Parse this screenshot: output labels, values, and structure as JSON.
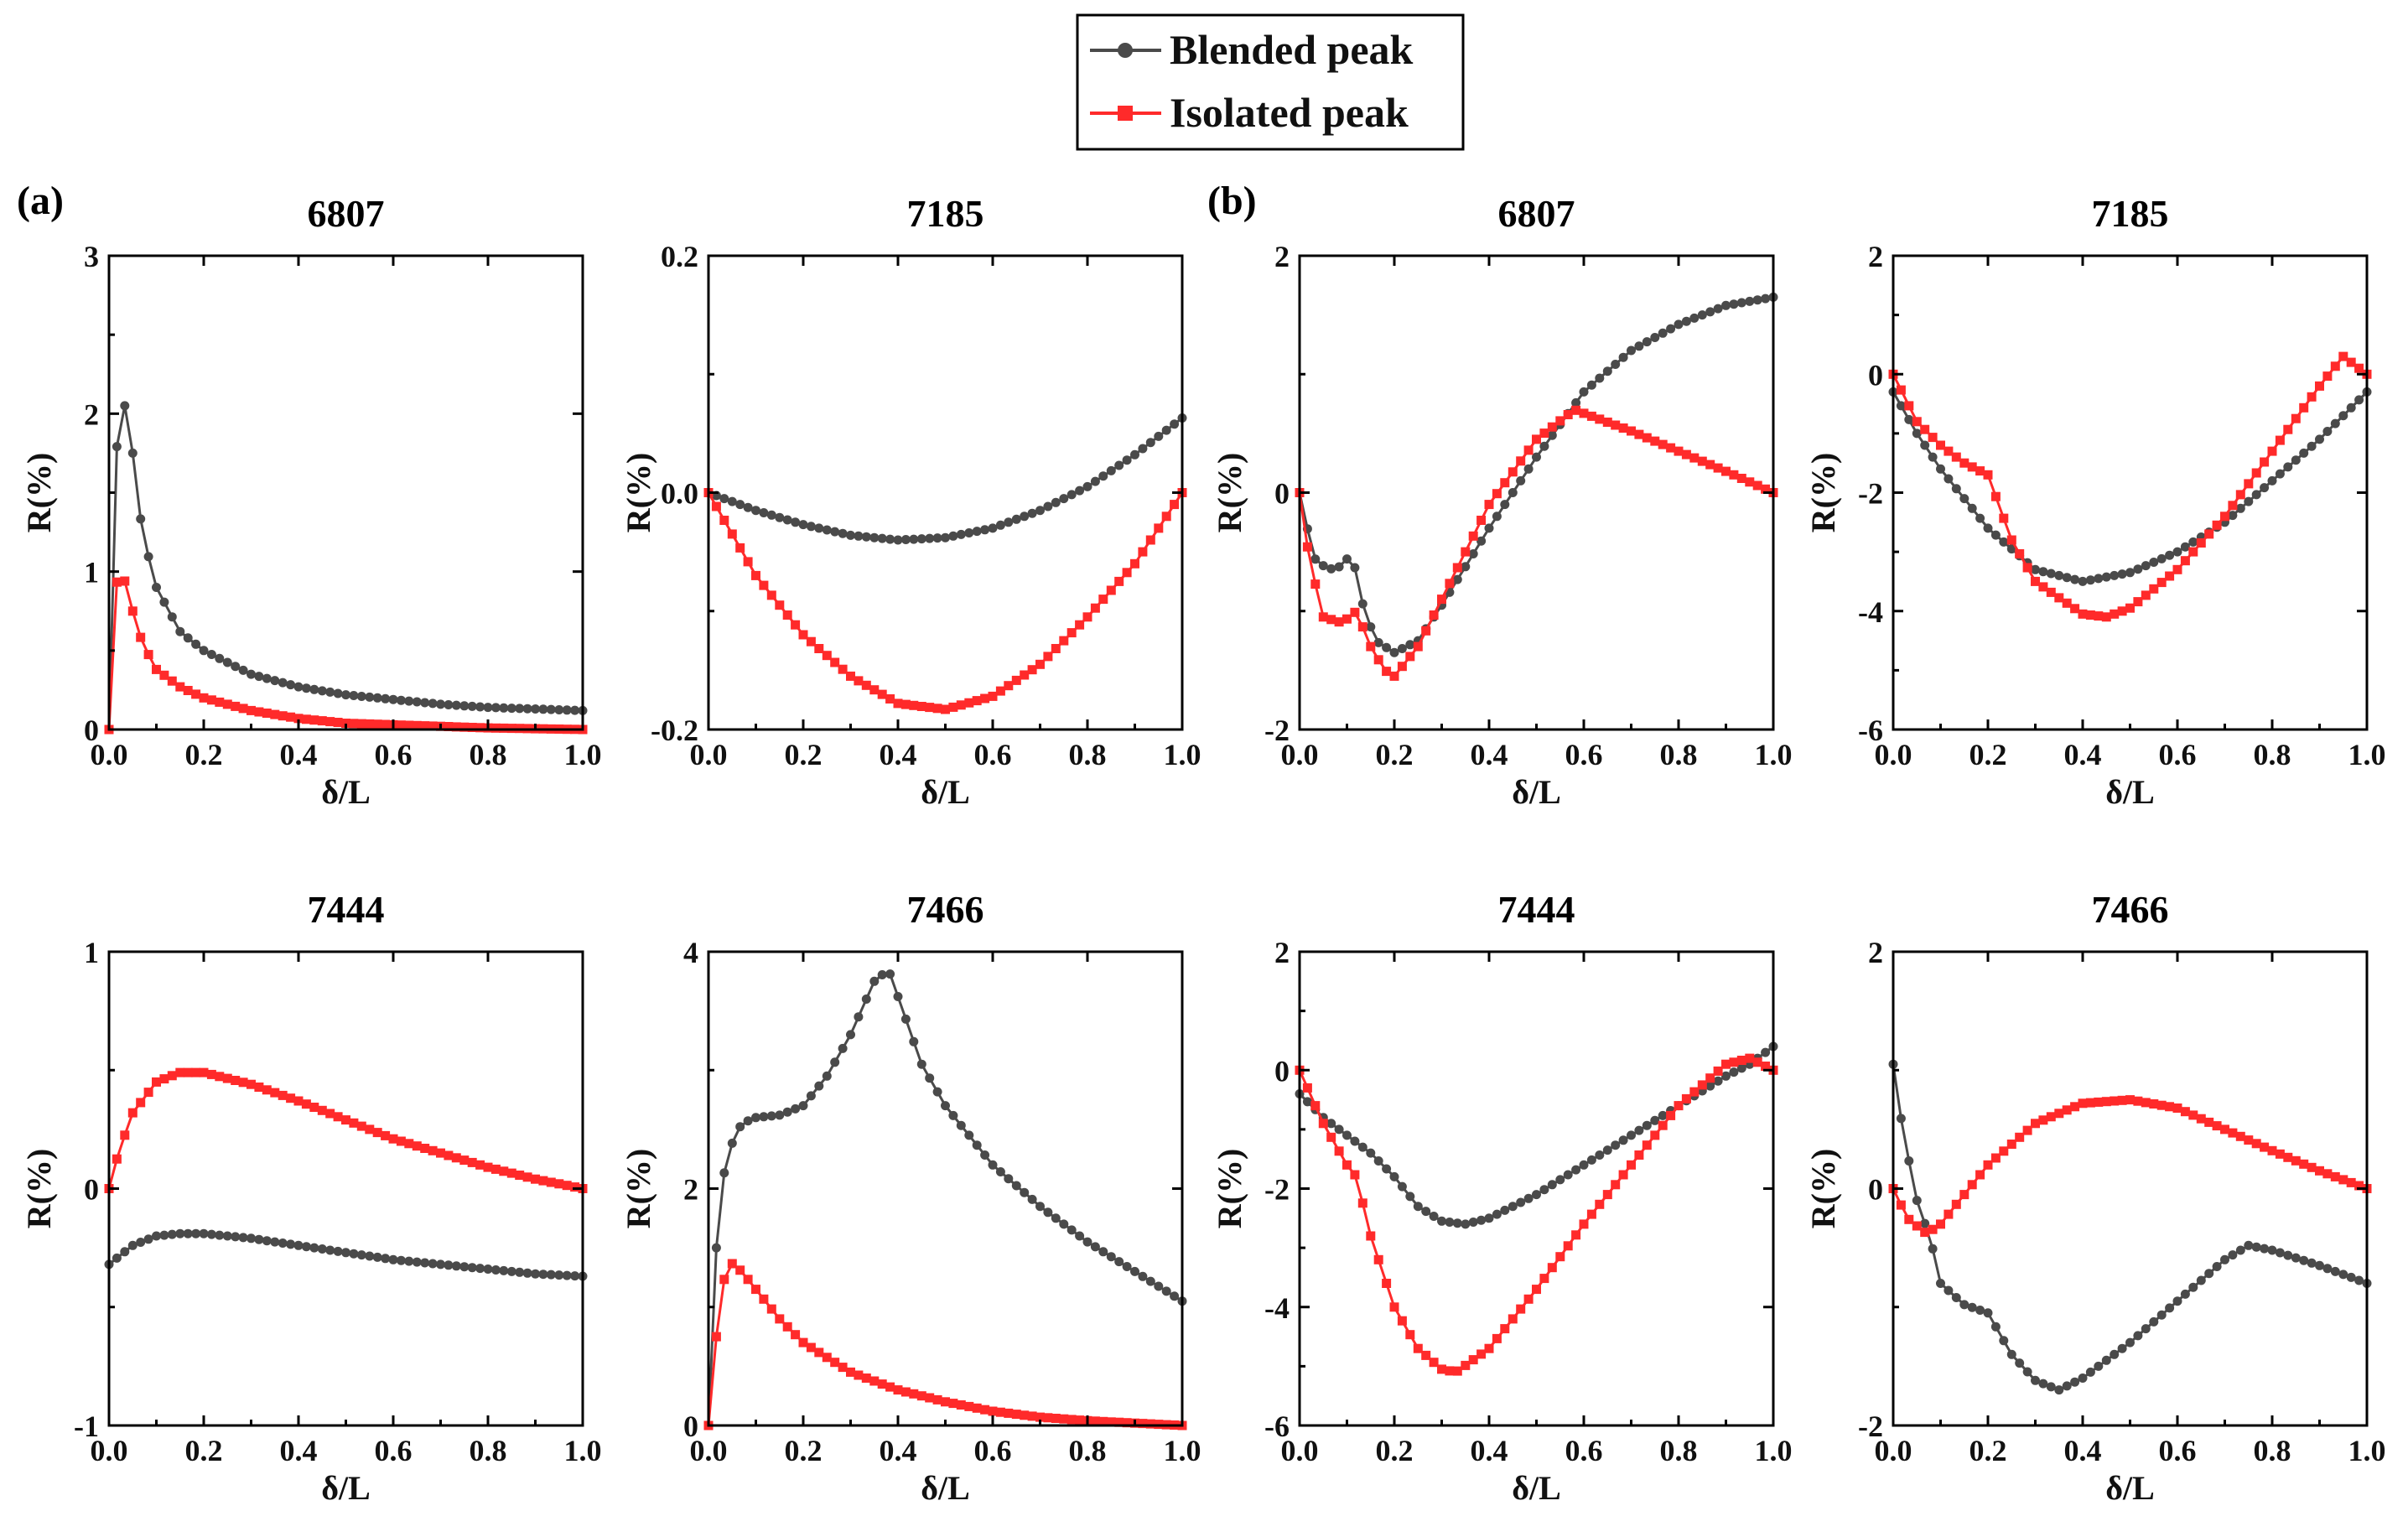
{
  "legend": {
    "items": [
      {
        "label": "Blended peak",
        "color": "#4a4a4a",
        "marker": "circle"
      },
      {
        "label": "Isolated peak",
        "color": "#ff2a2a",
        "marker": "square"
      }
    ]
  },
  "panel_labels": [
    "(a)",
    "(b)"
  ],
  "colors": {
    "blended": "#4a4a4a",
    "isolated": "#ff2a2a"
  },
  "chart_data": [
    {
      "type": "line",
      "panel": "a",
      "title": "6807",
      "xlabel": "δ/L",
      "ylabel": "R(%)",
      "xlim": [
        0,
        1
      ],
      "ylim": [
        0,
        3
      ],
      "xticks": [
        0.0,
        0.2,
        0.4,
        0.6,
        0.8,
        1.0
      ],
      "yticks": [
        0,
        1,
        2,
        3
      ],
      "x_tick_labels": [
        "0.0",
        "0.2",
        "0.4",
        "0.6",
        "0.8",
        "1.0"
      ],
      "y_tick_labels": [
        "0",
        "1",
        "2",
        "3"
      ],
      "series": [
        {
          "name": "Blended peak",
          "x": [
            0,
            0.02,
            0.04,
            0.07,
            0.1,
            0.15,
            0.2,
            0.3,
            0.4,
            0.5,
            0.6,
            0.7,
            0.8,
            0.9,
            1.0
          ],
          "y": [
            0,
            2.15,
            2.0,
            1.25,
            0.9,
            0.62,
            0.5,
            0.35,
            0.27,
            0.22,
            0.19,
            0.16,
            0.14,
            0.13,
            0.12
          ]
        },
        {
          "name": "Isolated peak",
          "x": [
            0,
            0.02,
            0.04,
            0.07,
            0.1,
            0.15,
            0.2,
            0.3,
            0.4,
            0.5,
            0.6,
            0.7,
            0.8,
            0.9,
            1.0
          ],
          "y": [
            0,
            1.12,
            0.85,
            0.55,
            0.38,
            0.27,
            0.2,
            0.12,
            0.07,
            0.04,
            0.03,
            0.02,
            0.01,
            0.005,
            0
          ]
        }
      ]
    },
    {
      "type": "line",
      "panel": "a",
      "title": "7185",
      "xlabel": "δ/L",
      "ylabel": "R(%)",
      "xlim": [
        0,
        1
      ],
      "ylim": [
        -0.2,
        0.2
      ],
      "xticks": [
        0.0,
        0.2,
        0.4,
        0.6,
        0.8,
        1.0
      ],
      "yticks": [
        -0.2,
        0.0,
        0.2
      ],
      "x_tick_labels": [
        "0.0",
        "0.2",
        "0.4",
        "0.6",
        "0.8",
        "1.0"
      ],
      "y_tick_labels": [
        "-0.2",
        "0.0",
        "0.2"
      ],
      "series": [
        {
          "name": "Blended peak",
          "x": [
            0,
            0.1,
            0.2,
            0.3,
            0.4,
            0.5,
            0.6,
            0.7,
            0.8,
            0.9,
            1.0
          ],
          "y": [
            0,
            -0.015,
            -0.027,
            -0.036,
            -0.04,
            -0.038,
            -0.03,
            -0.015,
            0.005,
            0.032,
            0.063
          ]
        },
        {
          "name": "Isolated peak",
          "x": [
            0,
            0.1,
            0.2,
            0.3,
            0.4,
            0.5,
            0.6,
            0.7,
            0.8,
            0.9,
            1.0
          ],
          "y": [
            0,
            -0.07,
            -0.12,
            -0.155,
            -0.178,
            -0.183,
            -0.172,
            -0.145,
            -0.105,
            -0.06,
            0
          ]
        }
      ]
    },
    {
      "type": "line",
      "panel": "b",
      "title": "6807",
      "xlabel": "δ/L",
      "ylabel": "R(%)",
      "xlim": [
        0,
        1
      ],
      "ylim": [
        -2,
        2
      ],
      "xticks": [
        0.0,
        0.2,
        0.4,
        0.6,
        0.8,
        1.0
      ],
      "yticks": [
        -2,
        0,
        2
      ],
      "x_tick_labels": [
        "0.0",
        "0.2",
        "0.4",
        "0.6",
        "0.8",
        "1.0"
      ],
      "y_tick_labels": [
        "-2",
        "0",
        "2"
      ],
      "series": [
        {
          "name": "Blended peak",
          "x": [
            0,
            0.03,
            0.06,
            0.09,
            0.11,
            0.13,
            0.16,
            0.2,
            0.25,
            0.3,
            0.4,
            0.5,
            0.6,
            0.7,
            0.8,
            0.9,
            1.0
          ],
          "y": [
            0,
            -0.55,
            -0.65,
            -0.62,
            -0.5,
            -0.9,
            -1.25,
            -1.35,
            -1.25,
            -0.95,
            -0.3,
            0.3,
            0.85,
            1.2,
            1.42,
            1.58,
            1.65
          ]
        },
        {
          "name": "Isolated peak",
          "x": [
            0,
            0.02,
            0.05,
            0.09,
            0.12,
            0.15,
            0.18,
            0.2,
            0.25,
            0.3,
            0.4,
            0.5,
            0.58,
            0.7,
            0.8,
            0.9,
            1.0
          ],
          "y": [
            0,
            -0.55,
            -1.05,
            -1.1,
            -1.0,
            -1.3,
            -1.5,
            -1.55,
            -1.3,
            -0.9,
            -0.1,
            0.45,
            0.7,
            0.52,
            0.35,
            0.18,
            0
          ]
        }
      ]
    },
    {
      "type": "line",
      "panel": "b",
      "title": "7185",
      "xlabel": "δ/L",
      "ylabel": "R(%)",
      "xlim": [
        0,
        1
      ],
      "ylim": [
        -6,
        2
      ],
      "xticks": [
        0.0,
        0.2,
        0.4,
        0.6,
        0.8,
        1.0
      ],
      "yticks": [
        -6,
        -4,
        -2,
        0,
        2
      ],
      "x_tick_labels": [
        "0.0",
        "0.2",
        "0.4",
        "0.6",
        "0.8",
        "1.0"
      ],
      "y_tick_labels": [
        "-6",
        "-4",
        "-2",
        "0",
        "2"
      ],
      "series": [
        {
          "name": "Blended peak",
          "x": [
            0,
            0.05,
            0.1,
            0.15,
            0.2,
            0.3,
            0.4,
            0.5,
            0.6,
            0.7,
            0.8,
            0.9,
            1.0
          ],
          "y": [
            -0.3,
            -1.0,
            -1.6,
            -2.1,
            -2.6,
            -3.3,
            -3.5,
            -3.35,
            -3.0,
            -2.5,
            -1.8,
            -1.1,
            -0.3
          ]
        },
        {
          "name": "Isolated peak",
          "x": [
            0,
            0.05,
            0.1,
            0.15,
            0.2,
            0.25,
            0.3,
            0.4,
            0.45,
            0.5,
            0.6,
            0.7,
            0.8,
            0.9,
            0.95,
            1.0
          ],
          "y": [
            0,
            -0.8,
            -1.2,
            -1.5,
            -1.7,
            -2.8,
            -3.5,
            -4.05,
            -4.1,
            -3.95,
            -3.3,
            -2.4,
            -1.3,
            -0.2,
            0.3,
            0
          ]
        }
      ]
    },
    {
      "type": "line",
      "panel": "a",
      "title": "7444",
      "xlabel": "δ/L",
      "ylabel": "R(%)",
      "xlim": [
        0,
        1
      ],
      "ylim": [
        -1,
        1
      ],
      "xticks": [
        0.0,
        0.2,
        0.4,
        0.6,
        0.8,
        1.0
      ],
      "yticks": [
        -1,
        0,
        1
      ],
      "x_tick_labels": [
        "0.0",
        "0.2",
        "0.4",
        "0.6",
        "0.8",
        "1.0"
      ],
      "y_tick_labels": [
        "-1",
        "0",
        "1"
      ],
      "series": [
        {
          "name": "Blended peak",
          "x": [
            0,
            0.05,
            0.1,
            0.15,
            0.2,
            0.3,
            0.4,
            0.5,
            0.6,
            0.7,
            0.8,
            0.9,
            1.0
          ],
          "y": [
            -0.32,
            -0.24,
            -0.2,
            -0.19,
            -0.19,
            -0.21,
            -0.24,
            -0.27,
            -0.3,
            -0.32,
            -0.34,
            -0.36,
            -0.37
          ]
        },
        {
          "name": "Isolated peak",
          "x": [
            0,
            0.02,
            0.05,
            0.1,
            0.15,
            0.2,
            0.3,
            0.4,
            0.5,
            0.6,
            0.7,
            0.8,
            0.9,
            1.0
          ],
          "y": [
            0,
            0.15,
            0.32,
            0.45,
            0.49,
            0.49,
            0.44,
            0.37,
            0.29,
            0.21,
            0.15,
            0.09,
            0.04,
            0
          ]
        }
      ]
    },
    {
      "type": "line",
      "panel": "a",
      "title": "7466",
      "xlabel": "δ/L",
      "ylabel": "R(%)",
      "xlim": [
        0,
        1
      ],
      "ylim": [
        0,
        4
      ],
      "xticks": [
        0.0,
        0.2,
        0.4,
        0.6,
        0.8,
        1.0
      ],
      "yticks": [
        0,
        2,
        4
      ],
      "x_tick_labels": [
        "0.0",
        "0.2",
        "0.4",
        "0.6",
        "0.8",
        "1.0"
      ],
      "y_tick_labels": [
        "0",
        "2",
        "4"
      ],
      "series": [
        {
          "name": "Blended peak",
          "x": [
            0,
            0.02,
            0.04,
            0.07,
            0.1,
            0.15,
            0.2,
            0.25,
            0.3,
            0.35,
            0.38,
            0.45,
            0.5,
            0.6,
            0.7,
            0.8,
            0.9,
            1.0
          ],
          "y": [
            0,
            1.8,
            2.3,
            2.55,
            2.6,
            2.62,
            2.7,
            2.95,
            3.3,
            3.75,
            3.85,
            3.05,
            2.7,
            2.2,
            1.85,
            1.55,
            1.3,
            1.05
          ]
        },
        {
          "name": "Isolated peak",
          "x": [
            0,
            0.02,
            0.04,
            0.07,
            0.1,
            0.15,
            0.2,
            0.3,
            0.4,
            0.5,
            0.6,
            0.7,
            0.8,
            0.9,
            1.0
          ],
          "y": [
            0,
            0.9,
            1.4,
            1.3,
            1.15,
            0.9,
            0.7,
            0.45,
            0.3,
            0.2,
            0.12,
            0.07,
            0.04,
            0.02,
            0
          ]
        }
      ]
    },
    {
      "type": "line",
      "panel": "b",
      "title": "7444",
      "xlabel": "δ/L",
      "ylabel": "R(%)",
      "xlim": [
        0,
        1
      ],
      "ylim": [
        -6,
        2
      ],
      "xticks": [
        0.0,
        0.2,
        0.4,
        0.6,
        0.8,
        1.0
      ],
      "yticks": [
        -6,
        -4,
        -2,
        0,
        2
      ],
      "x_tick_labels": [
        "0.0",
        "0.2",
        "0.4",
        "0.6",
        "0.8",
        "1.0"
      ],
      "y_tick_labels": [
        "-6",
        "-4",
        "-2",
        "0",
        "2"
      ],
      "series": [
        {
          "name": "Blended peak",
          "x": [
            0,
            0.05,
            0.1,
            0.15,
            0.2,
            0.25,
            0.3,
            0.35,
            0.4,
            0.5,
            0.6,
            0.7,
            0.8,
            0.9,
            0.95,
            1.0
          ],
          "y": [
            -0.4,
            -0.8,
            -1.1,
            -1.4,
            -1.8,
            -2.3,
            -2.55,
            -2.6,
            -2.5,
            -2.1,
            -1.6,
            -1.1,
            -0.6,
            -0.1,
            0.1,
            0.4
          ]
        },
        {
          "name": "Isolated peak",
          "x": [
            0,
            0.05,
            0.1,
            0.12,
            0.15,
            0.2,
            0.25,
            0.3,
            0.33,
            0.4,
            0.5,
            0.6,
            0.7,
            0.8,
            0.9,
            0.95,
            1.0
          ],
          "y": [
            0,
            -0.9,
            -1.6,
            -1.8,
            -2.8,
            -4.0,
            -4.7,
            -5.05,
            -5.1,
            -4.7,
            -3.7,
            -2.6,
            -1.6,
            -0.6,
            0.1,
            0.2,
            0
          ]
        }
      ]
    },
    {
      "type": "line",
      "panel": "b",
      "title": "7466",
      "xlabel": "δ/L",
      "ylabel": "R(%)",
      "xlim": [
        0,
        1
      ],
      "ylim": [
        -2,
        2
      ],
      "xticks": [
        0.0,
        0.2,
        0.4,
        0.6,
        0.8,
        1.0
      ],
      "yticks": [
        -2,
        0,
        2
      ],
      "x_tick_labels": [
        "0.0",
        "0.2",
        "0.4",
        "0.6",
        "0.8",
        "1.0"
      ],
      "y_tick_labels": [
        "-2",
        "0",
        "2"
      ],
      "series": [
        {
          "name": "Blended peak",
          "x": [
            0,
            0.02,
            0.05,
            0.08,
            0.1,
            0.15,
            0.2,
            0.25,
            0.3,
            0.35,
            0.4,
            0.5,
            0.6,
            0.7,
            0.75,
            0.8,
            0.9,
            1.0
          ],
          "y": [
            1.05,
            0.5,
            -0.1,
            -0.45,
            -0.8,
            -0.98,
            -1.05,
            -1.4,
            -1.62,
            -1.7,
            -1.6,
            -1.3,
            -0.95,
            -0.6,
            -0.48,
            -0.52,
            -0.65,
            -0.8
          ]
        },
        {
          "name": "Isolated peak",
          "x": [
            0,
            0.03,
            0.07,
            0.1,
            0.15,
            0.2,
            0.3,
            0.4,
            0.5,
            0.6,
            0.7,
            0.8,
            0.9,
            1.0
          ],
          "y": [
            0,
            -0.25,
            -0.38,
            -0.3,
            -0.05,
            0.2,
            0.55,
            0.72,
            0.75,
            0.68,
            0.5,
            0.32,
            0.15,
            0
          ]
        }
      ]
    }
  ]
}
